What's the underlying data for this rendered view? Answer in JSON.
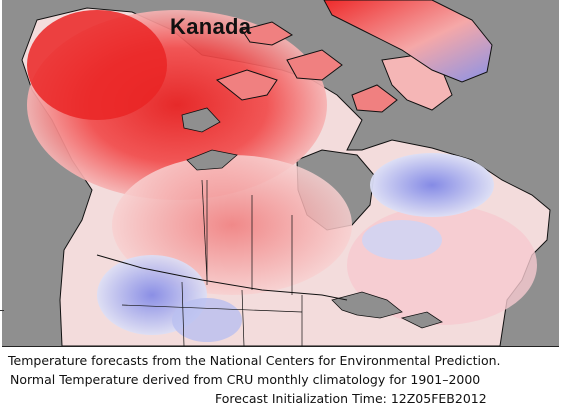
{
  "map": {
    "title": "Kanada"
  },
  "colors": {
    "background_gray": "#8f8f8f",
    "warm_anomaly": "#ee1c1c",
    "mild_warm": "#f6b3b3",
    "near_normal": "#f4f0f2",
    "cool_anomaly": "#7f86e6",
    "mild_cool": "#c4c8f1",
    "coastline": "#111111"
  },
  "caption": {
    "line1": "Temperature forecasts from the National Centers for Environmental Prediction.",
    "line2": "Normal Temperature derived from CRU monthly climatology for 1901–2000",
    "line3": "Forecast Initialization Time: 12Z05FEB2012"
  }
}
